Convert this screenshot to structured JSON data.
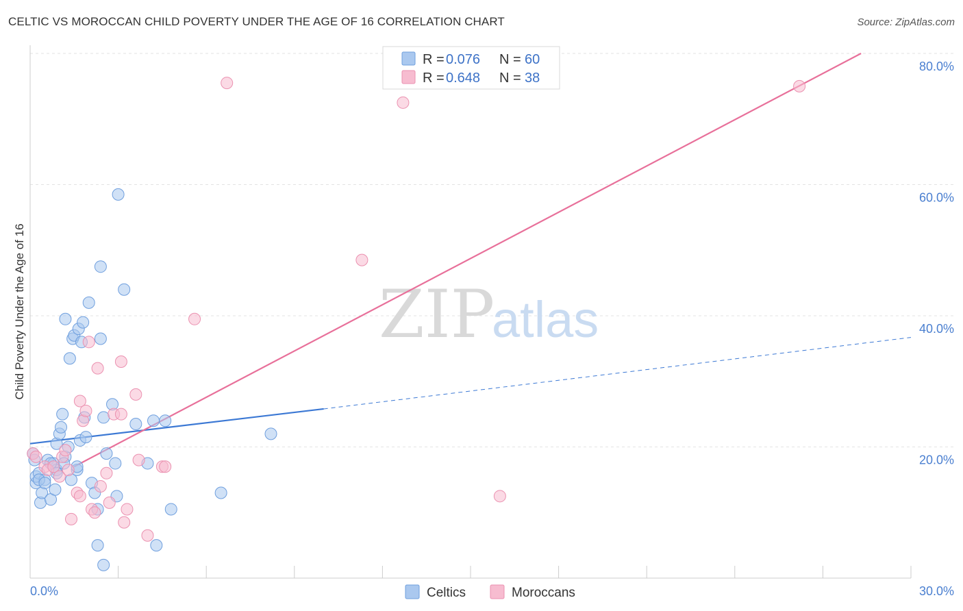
{
  "header": {
    "title": "CELTIC VS MOROCCAN CHILD POVERTY UNDER THE AGE OF 16 CORRELATION CHART",
    "source": "Source: ZipAtlas.com"
  },
  "watermark": {
    "zip": "ZIP",
    "atlas": "atlas"
  },
  "colors": {
    "celtic_fill": "#aac8ef",
    "celtic_stroke": "#6f9fde",
    "celtic_line": "#3b78d4",
    "moroccan_fill": "#f7bcd0",
    "moroccan_stroke": "#eb91b0",
    "moroccan_line": "#e8709a",
    "grid": "#e3e3e3",
    "tick_text": "#4a7fd0"
  },
  "legend": {
    "rows": [
      {
        "r_label": "R =",
        "r_value": "0.076",
        "n_label": "N =",
        "n_value": "60"
      },
      {
        "r_label": "R =",
        "r_value": "0.648",
        "n_label": "N =",
        "n_value": "38"
      }
    ]
  },
  "chart_data": {
    "type": "scatter",
    "title": "CELTIC VS MOROCCAN CHILD POVERTY UNDER THE AGE OF 16 CORRELATION CHART",
    "xlabel": "",
    "ylabel": "Child Poverty Under the Age of 16",
    "xlim": [
      0,
      30
    ],
    "ylim": [
      0,
      80
    ],
    "x_tick_labels": [
      "0.0%",
      "30.0%"
    ],
    "y_ticks": [
      20,
      40,
      60,
      80
    ],
    "y_tick_labels": [
      "20.0%",
      "40.0%",
      "60.0%",
      "80.0%"
    ],
    "grid": true,
    "legend_position": "top-center",
    "series": [
      {
        "name": "Celtics",
        "r": 0.076,
        "n": 60,
        "trend": {
          "x0": 0,
          "y0": 20.5,
          "x1": 10,
          "y1": 25.8,
          "dashed_to_x": 30,
          "dashed_to_y": 36.7
        },
        "points": [
          [
            0.1,
            19.0
          ],
          [
            0.2,
            14.5
          ],
          [
            0.2,
            15.5
          ],
          [
            0.3,
            16.0
          ],
          [
            0.35,
            11.5
          ],
          [
            0.4,
            13.0
          ],
          [
            0.5,
            15.0
          ],
          [
            0.6,
            18.0
          ],
          [
            0.7,
            12.0
          ],
          [
            0.8,
            17.5
          ],
          [
            0.85,
            13.5
          ],
          [
            0.9,
            16.5
          ],
          [
            0.9,
            20.5
          ],
          [
            1.0,
            22.0
          ],
          [
            1.05,
            23.0
          ],
          [
            1.1,
            25.0
          ],
          [
            1.2,
            39.5
          ],
          [
            1.2,
            18.5
          ],
          [
            1.3,
            20.0
          ],
          [
            1.35,
            33.5
          ],
          [
            1.4,
            15.0
          ],
          [
            1.45,
            36.5
          ],
          [
            1.5,
            37.0
          ],
          [
            1.6,
            16.5
          ],
          [
            1.6,
            17.0
          ],
          [
            1.65,
            38.0
          ],
          [
            1.7,
            21.0
          ],
          [
            1.75,
            36.0
          ],
          [
            1.8,
            39.0
          ],
          [
            1.85,
            24.5
          ],
          [
            1.9,
            21.5
          ],
          [
            2.0,
            42.0
          ],
          [
            2.1,
            14.5
          ],
          [
            2.2,
            13.0
          ],
          [
            2.3,
            10.5
          ],
          [
            2.3,
            5.0
          ],
          [
            2.4,
            47.5
          ],
          [
            2.4,
            36.5
          ],
          [
            2.5,
            24.5
          ],
          [
            2.6,
            19.0
          ],
          [
            2.8,
            26.5
          ],
          [
            2.9,
            17.5
          ],
          [
            2.95,
            12.5
          ],
          [
            3.0,
            58.5
          ],
          [
            3.2,
            44.0
          ],
          [
            2.5,
            2.0
          ],
          [
            3.6,
            23.5
          ],
          [
            4.0,
            17.5
          ],
          [
            4.2,
            24.0
          ],
          [
            4.3,
            5.0
          ],
          [
            4.6,
            24.0
          ],
          [
            4.8,
            10.5
          ],
          [
            6.5,
            13.0
          ],
          [
            8.2,
            22.0
          ],
          [
            0.3,
            15.0
          ],
          [
            0.5,
            14.5
          ],
          [
            0.7,
            17.5
          ],
          [
            0.9,
            16.0
          ],
          [
            1.15,
            17.5
          ],
          [
            0.15,
            18.0
          ]
        ]
      },
      {
        "name": "Moroccans",
        "r": 0.648,
        "n": 38,
        "trend": {
          "x0": 1.5,
          "y0": 17.0,
          "x1": 28.3,
          "y1": 80.0
        },
        "points": [
          [
            0.1,
            19.0
          ],
          [
            0.2,
            18.5
          ],
          [
            0.5,
            17.0
          ],
          [
            0.6,
            16.5
          ],
          [
            0.8,
            17.0
          ],
          [
            1.0,
            15.5
          ],
          [
            1.1,
            18.5
          ],
          [
            1.2,
            19.5
          ],
          [
            1.3,
            16.5
          ],
          [
            1.4,
            9.0
          ],
          [
            1.6,
            13.0
          ],
          [
            1.7,
            12.5
          ],
          [
            1.7,
            27.0
          ],
          [
            1.8,
            24.0
          ],
          [
            1.9,
            25.5
          ],
          [
            2.0,
            36.0
          ],
          [
            2.1,
            10.5
          ],
          [
            2.2,
            10.0
          ],
          [
            2.3,
            32.0
          ],
          [
            2.4,
            14.0
          ],
          [
            2.6,
            16.0
          ],
          [
            2.7,
            11.5
          ],
          [
            2.85,
            25.0
          ],
          [
            3.1,
            33.0
          ],
          [
            3.1,
            25.0
          ],
          [
            3.2,
            8.5
          ],
          [
            3.3,
            10.5
          ],
          [
            3.6,
            28.0
          ],
          [
            3.7,
            18.0
          ],
          [
            4.0,
            6.5
          ],
          [
            4.5,
            17.0
          ],
          [
            4.6,
            17.0
          ],
          [
            5.6,
            39.5
          ],
          [
            6.7,
            75.5
          ],
          [
            11.3,
            48.5
          ],
          [
            12.7,
            72.5
          ],
          [
            16.0,
            12.5
          ],
          [
            26.2,
            75.0
          ]
        ]
      }
    ]
  },
  "bottom_legend": {
    "items": [
      "Celtics",
      "Moroccans"
    ]
  }
}
